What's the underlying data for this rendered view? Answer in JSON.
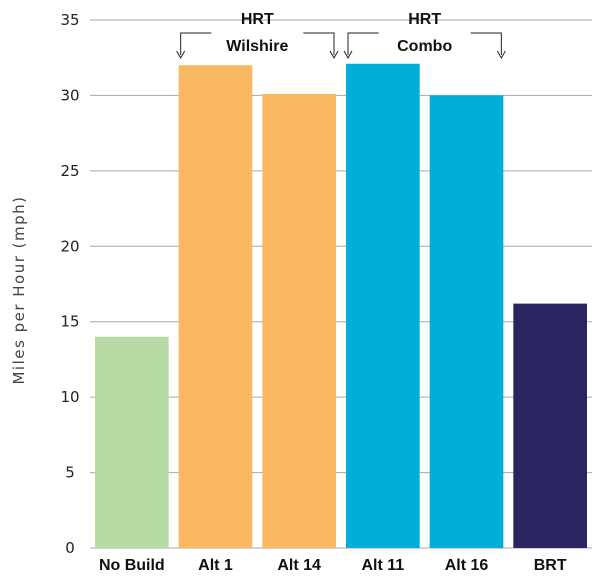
{
  "chart_data": {
    "type": "bar",
    "categories": [
      "No Build",
      "Alt 1",
      "Alt 14",
      "Alt 11",
      "Alt 16",
      "BRT"
    ],
    "values": [
      14,
      32,
      30.1,
      32.1,
      30,
      16.2
    ],
    "colors": [
      "#b8dba5",
      "#fbb862",
      "#fbb862",
      "#00aed8",
      "#00aed8",
      "#2a2461"
    ],
    "ylabel": "Miles per Hour (mph)",
    "xlabel": "",
    "title": "",
    "ylim": [
      0,
      35
    ],
    "yticks": [
      0,
      5,
      10,
      15,
      20,
      25,
      30,
      35
    ],
    "grid": true,
    "groups": [
      {
        "line1": "HRT",
        "line2": "Wilshire",
        "categories": [
          "Alt 1",
          "Alt 14"
        ]
      },
      {
        "line1": "HRT",
        "line2": "Combo",
        "categories": [
          "Alt 11",
          "Alt 16"
        ]
      }
    ]
  }
}
